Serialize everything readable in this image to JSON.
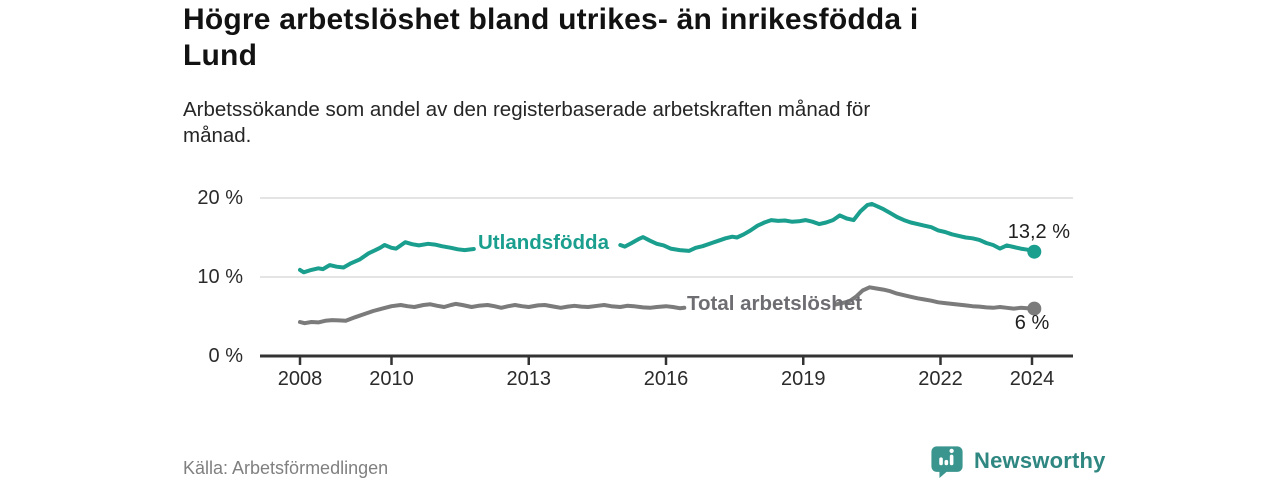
{
  "title": "Högre arbetslöshet bland utrikes- än inrikesfödda i\nLund",
  "subtitle": "Arbetssökande som andel av den registerbaserade arbetskraften månad för\nmånad.",
  "source": "Källa: Arbetsförmedlingen",
  "logo": {
    "text": "Newsworthy",
    "icon": "bar-chart-bubble"
  },
  "colors": {
    "accent_teal": "#1a9e8e",
    "line_gray": "#7b7b7b",
    "label_gray": "#6d6d72",
    "grid": "#dcdcdc",
    "axis": "#333333",
    "brand_teal": "#3a958e",
    "brand_text": "#2f8781"
  },
  "chart_data": {
    "type": "line",
    "title": "Högre arbetslöshet bland utrikes- än inrikesfödda i Lund",
    "xlabel": "",
    "ylabel": "Arbetssökande som andel av den registerbaserade arbetskraften",
    "x_unit": "year (monthly data)",
    "y_unit": "%",
    "x_range": [
      2007.2,
      2024.9
    ],
    "y_range": [
      0,
      21
    ],
    "grid": "horizontal-only",
    "legend_position": "inline-on-line",
    "x_ticks": [
      2008,
      2010,
      2013,
      2016,
      2019,
      2022,
      2024
    ],
    "y_ticks": [
      {
        "value": 0,
        "label": "0 %"
      },
      {
        "value": 10,
        "label": "10 %"
      },
      {
        "value": 20,
        "label": "20 %"
      }
    ],
    "series": [
      {
        "name": "Utlandsfödda",
        "color": "#1a9e8e",
        "label_color": "#1a9e8e",
        "end_label": "13,2 %",
        "end_value": 13.2,
        "segments": [
          [
            [
              2008.0,
              10.9
            ],
            [
              2008.08,
              10.6
            ],
            [
              2008.25,
              10.9
            ],
            [
              2008.4,
              11.1
            ],
            [
              2008.5,
              11.0
            ],
            [
              2008.65,
              11.5
            ],
            [
              2008.8,
              11.3
            ],
            [
              2008.95,
              11.2
            ],
            [
              2009.1,
              11.7
            ],
            [
              2009.3,
              12.2
            ],
            [
              2009.5,
              13.0
            ],
            [
              2009.65,
              13.4
            ],
            [
              2009.75,
              13.7
            ],
            [
              2009.85,
              14.05
            ],
            [
              2010.0,
              13.7
            ],
            [
              2010.1,
              13.6
            ],
            [
              2010.3,
              14.4
            ],
            [
              2010.45,
              14.15
            ],
            [
              2010.6,
              14.0
            ],
            [
              2010.8,
              14.2
            ],
            [
              2010.95,
              14.1
            ],
            [
              2011.1,
              13.9
            ],
            [
              2011.3,
              13.7
            ],
            [
              2011.45,
              13.5
            ],
            [
              2011.6,
              13.4
            ],
            [
              2011.8,
              13.55
            ]
          ],
          [
            [
              2015.0,
              14.05
            ],
            [
              2015.1,
              13.85
            ],
            [
              2015.25,
              14.3
            ],
            [
              2015.4,
              14.8
            ],
            [
              2015.5,
              15.05
            ],
            [
              2015.65,
              14.6
            ],
            [
              2015.8,
              14.2
            ],
            [
              2015.95,
              14.0
            ],
            [
              2016.1,
              13.6
            ],
            [
              2016.3,
              13.4
            ],
            [
              2016.5,
              13.3
            ],
            [
              2016.65,
              13.7
            ],
            [
              2016.8,
              13.9
            ],
            [
              2017.0,
              14.3
            ],
            [
              2017.15,
              14.6
            ],
            [
              2017.3,
              14.9
            ],
            [
              2017.45,
              15.1
            ],
            [
              2017.55,
              15.0
            ],
            [
              2017.7,
              15.4
            ],
            [
              2017.85,
              15.9
            ],
            [
              2018.0,
              16.5
            ],
            [
              2018.15,
              16.9
            ],
            [
              2018.3,
              17.2
            ],
            [
              2018.45,
              17.1
            ],
            [
              2018.6,
              17.15
            ],
            [
              2018.75,
              17.0
            ],
            [
              2018.9,
              17.05
            ],
            [
              2019.05,
              17.2
            ],
            [
              2019.2,
              17.0
            ],
            [
              2019.35,
              16.7
            ],
            [
              2019.5,
              16.9
            ],
            [
              2019.65,
              17.2
            ],
            [
              2019.8,
              17.8
            ],
            [
              2019.95,
              17.4
            ],
            [
              2020.1,
              17.2
            ],
            [
              2020.25,
              18.3
            ],
            [
              2020.4,
              19.1
            ],
            [
              2020.5,
              19.25
            ],
            [
              2020.6,
              19.0
            ],
            [
              2020.75,
              18.6
            ],
            [
              2020.9,
              18.1
            ],
            [
              2021.05,
              17.6
            ],
            [
              2021.2,
              17.2
            ],
            [
              2021.35,
              16.9
            ],
            [
              2021.5,
              16.7
            ],
            [
              2021.65,
              16.5
            ],
            [
              2021.8,
              16.3
            ],
            [
              2021.95,
              15.9
            ],
            [
              2022.1,
              15.7
            ],
            [
              2022.25,
              15.4
            ],
            [
              2022.4,
              15.2
            ],
            [
              2022.55,
              15.0
            ],
            [
              2022.7,
              14.9
            ],
            [
              2022.85,
              14.7
            ],
            [
              2023.0,
              14.3
            ],
            [
              2023.15,
              14.05
            ],
            [
              2023.3,
              13.6
            ],
            [
              2023.45,
              14.0
            ],
            [
              2023.6,
              13.8
            ],
            [
              2023.75,
              13.6
            ],
            [
              2023.9,
              13.45
            ],
            [
              2024.05,
              13.2
            ]
          ]
        ]
      },
      {
        "name": "Total arbetslöshet",
        "color": "#7b7b7b",
        "label_color": "#6d6d72",
        "end_label": "6 %",
        "end_value": 6,
        "segments": [
          [
            [
              2008.0,
              4.3
            ],
            [
              2008.1,
              4.15
            ],
            [
              2008.25,
              4.3
            ],
            [
              2008.4,
              4.25
            ],
            [
              2008.55,
              4.45
            ],
            [
              2008.7,
              4.55
            ],
            [
              2008.85,
              4.5
            ],
            [
              2009.0,
              4.45
            ],
            [
              2009.2,
              4.9
            ],
            [
              2009.4,
              5.3
            ],
            [
              2009.6,
              5.7
            ],
            [
              2009.8,
              6.0
            ],
            [
              2010.0,
              6.3
            ],
            [
              2010.2,
              6.45
            ],
            [
              2010.35,
              6.3
            ],
            [
              2010.5,
              6.2
            ],
            [
              2010.7,
              6.45
            ],
            [
              2010.85,
              6.55
            ],
            [
              2011.0,
              6.35
            ],
            [
              2011.15,
              6.2
            ],
            [
              2011.3,
              6.45
            ],
            [
              2011.4,
              6.6
            ],
            [
              2011.55,
              6.45
            ],
            [
              2011.75,
              6.2
            ],
            [
              2011.9,
              6.35
            ],
            [
              2012.1,
              6.45
            ],
            [
              2012.25,
              6.3
            ],
            [
              2012.4,
              6.1
            ],
            [
              2012.55,
              6.3
            ],
            [
              2012.7,
              6.45
            ],
            [
              2012.85,
              6.3
            ],
            [
              2013.0,
              6.2
            ],
            [
              2013.2,
              6.4
            ],
            [
              2013.35,
              6.45
            ],
            [
              2013.55,
              6.25
            ],
            [
              2013.7,
              6.1
            ],
            [
              2013.85,
              6.25
            ],
            [
              2014.0,
              6.35
            ],
            [
              2014.15,
              6.25
            ],
            [
              2014.3,
              6.2
            ],
            [
              2014.5,
              6.35
            ],
            [
              2014.65,
              6.45
            ],
            [
              2014.8,
              6.3
            ],
            [
              2015.0,
              6.2
            ],
            [
              2015.15,
              6.35
            ],
            [
              2015.3,
              6.3
            ],
            [
              2015.5,
              6.15
            ],
            [
              2015.65,
              6.1
            ],
            [
              2015.8,
              6.2
            ],
            [
              2016.0,
              6.3
            ],
            [
              2016.15,
              6.2
            ],
            [
              2016.3,
              6.05
            ],
            [
              2016.4,
              6.1
            ]
          ],
          [
            [
              2019.7,
              6.5
            ],
            [
              2019.85,
              6.7
            ],
            [
              2020.0,
              6.9
            ],
            [
              2020.15,
              7.5
            ],
            [
              2020.3,
              8.3
            ],
            [
              2020.45,
              8.7
            ],
            [
              2020.6,
              8.55
            ],
            [
              2020.75,
              8.4
            ],
            [
              2020.9,
              8.2
            ],
            [
              2021.05,
              7.9
            ],
            [
              2021.2,
              7.7
            ],
            [
              2021.35,
              7.5
            ],
            [
              2021.5,
              7.3
            ],
            [
              2021.65,
              7.15
            ],
            [
              2021.8,
              7.0
            ],
            [
              2021.95,
              6.8
            ],
            [
              2022.1,
              6.7
            ],
            [
              2022.25,
              6.6
            ],
            [
              2022.4,
              6.5
            ],
            [
              2022.55,
              6.4
            ],
            [
              2022.7,
              6.3
            ],
            [
              2022.85,
              6.25
            ],
            [
              2023.0,
              6.15
            ],
            [
              2023.15,
              6.1
            ],
            [
              2023.3,
              6.2
            ],
            [
              2023.45,
              6.1
            ],
            [
              2023.6,
              6.0
            ],
            [
              2023.75,
              6.1
            ],
            [
              2023.9,
              6.05
            ],
            [
              2024.05,
              6.0
            ]
          ]
        ]
      }
    ]
  }
}
